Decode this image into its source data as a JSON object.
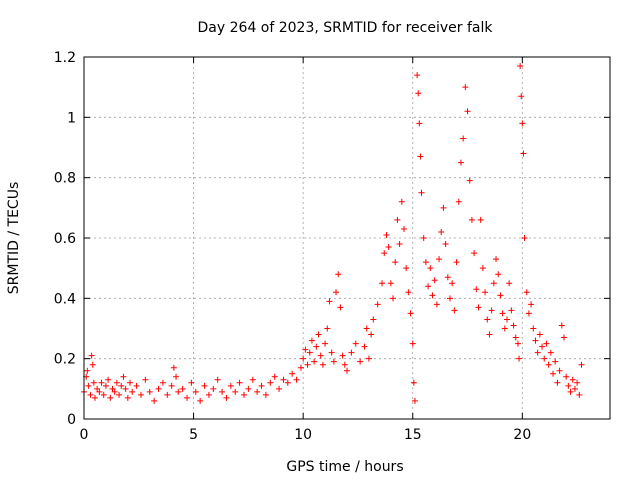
{
  "chart_data": {
    "type": "scatter",
    "title": "Day 264 of 2023, SRMTID for receiver falk",
    "xlabel": "GPS time / hours",
    "ylabel": "SRMTID / TECUs",
    "xlim": [
      0,
      24
    ],
    "ylim": [
      0,
      1.2
    ],
    "grid": true,
    "marker": "+",
    "x_ticks": [
      0,
      5,
      10,
      15,
      20
    ],
    "x_tick_labels": [
      "0",
      "5",
      "10",
      "15",
      "20"
    ],
    "y_ticks": [
      0,
      0.2,
      0.4,
      0.6,
      0.8,
      1.0,
      1.2
    ],
    "y_tick_labels": [
      "0",
      "0.2",
      "0.4",
      "0.6",
      "0.8",
      "1",
      "1.2"
    ],
    "series": [
      {
        "name": "SRMTID",
        "color": "#ff0000",
        "points": [
          [
            0.0,
            0.09
          ],
          [
            0.1,
            0.14
          ],
          [
            0.15,
            0.16
          ],
          [
            0.2,
            0.11
          ],
          [
            0.3,
            0.08
          ],
          [
            0.35,
            0.21
          ],
          [
            0.4,
            0.18
          ],
          [
            0.45,
            0.12
          ],
          [
            0.5,
            0.07
          ],
          [
            0.6,
            0.1
          ],
          [
            0.7,
            0.09
          ],
          [
            0.8,
            0.12
          ],
          [
            0.9,
            0.08
          ],
          [
            1.0,
            0.11
          ],
          [
            1.1,
            0.13
          ],
          [
            1.2,
            0.07
          ],
          [
            1.3,
            0.1
          ],
          [
            1.4,
            0.09
          ],
          [
            1.5,
            0.12
          ],
          [
            1.6,
            0.08
          ],
          [
            1.7,
            0.11
          ],
          [
            1.8,
            0.14
          ],
          [
            1.9,
            0.1
          ],
          [
            2.0,
            0.07
          ],
          [
            2.1,
            0.12
          ],
          [
            2.2,
            0.09
          ],
          [
            2.4,
            0.11
          ],
          [
            2.6,
            0.08
          ],
          [
            2.8,
            0.13
          ],
          [
            3.0,
            0.09
          ],
          [
            3.2,
            0.06
          ],
          [
            3.4,
            0.1
          ],
          [
            3.6,
            0.12
          ],
          [
            3.8,
            0.08
          ],
          [
            4.0,
            0.11
          ],
          [
            4.1,
            0.17
          ],
          [
            4.2,
            0.14
          ],
          [
            4.3,
            0.09
          ],
          [
            4.5,
            0.1
          ],
          [
            4.7,
            0.07
          ],
          [
            4.9,
            0.12
          ],
          [
            5.1,
            0.09
          ],
          [
            5.3,
            0.06
          ],
          [
            5.5,
            0.11
          ],
          [
            5.7,
            0.08
          ],
          [
            5.9,
            0.1
          ],
          [
            6.1,
            0.13
          ],
          [
            6.3,
            0.09
          ],
          [
            6.5,
            0.07
          ],
          [
            6.7,
            0.11
          ],
          [
            6.9,
            0.09
          ],
          [
            7.1,
            0.12
          ],
          [
            7.3,
            0.08
          ],
          [
            7.5,
            0.1
          ],
          [
            7.7,
            0.13
          ],
          [
            7.9,
            0.09
          ],
          [
            8.1,
            0.11
          ],
          [
            8.3,
            0.08
          ],
          [
            8.5,
            0.12
          ],
          [
            8.7,
            0.14
          ],
          [
            8.9,
            0.1
          ],
          [
            9.1,
            0.13
          ],
          [
            9.3,
            0.12
          ],
          [
            9.5,
            0.15
          ],
          [
            9.7,
            0.13
          ],
          [
            9.9,
            0.17
          ],
          [
            10.0,
            0.2
          ],
          [
            10.1,
            0.23
          ],
          [
            10.2,
            0.18
          ],
          [
            10.3,
            0.22
          ],
          [
            10.4,
            0.26
          ],
          [
            10.5,
            0.19
          ],
          [
            10.6,
            0.24
          ],
          [
            10.7,
            0.28
          ],
          [
            10.8,
            0.21
          ],
          [
            10.9,
            0.18
          ],
          [
            11.0,
            0.25
          ],
          [
            11.1,
            0.3
          ],
          [
            11.2,
            0.39
          ],
          [
            11.3,
            0.22
          ],
          [
            11.4,
            0.19
          ],
          [
            11.5,
            0.42
          ],
          [
            11.6,
            0.48
          ],
          [
            11.7,
            0.37
          ],
          [
            11.8,
            0.21
          ],
          [
            11.9,
            0.18
          ],
          [
            12.0,
            0.16
          ],
          [
            12.2,
            0.22
          ],
          [
            12.4,
            0.25
          ],
          [
            12.6,
            0.19
          ],
          [
            12.8,
            0.24
          ],
          [
            12.9,
            0.3
          ],
          [
            13.0,
            0.2
          ],
          [
            13.1,
            0.28
          ],
          [
            13.2,
            0.33
          ],
          [
            13.4,
            0.38
          ],
          [
            13.6,
            0.45
          ],
          [
            13.7,
            0.55
          ],
          [
            13.8,
            0.61
          ],
          [
            13.9,
            0.57
          ],
          [
            14.0,
            0.45
          ],
          [
            14.1,
            0.4
          ],
          [
            14.2,
            0.52
          ],
          [
            14.3,
            0.66
          ],
          [
            14.4,
            0.58
          ],
          [
            14.5,
            0.72
          ],
          [
            14.6,
            0.63
          ],
          [
            14.7,
            0.5
          ],
          [
            14.8,
            0.42
          ],
          [
            14.9,
            0.35
          ],
          [
            15.0,
            0.25
          ],
          [
            15.05,
            0.12
          ],
          [
            15.1,
            0.06
          ],
          [
            15.2,
            1.14
          ],
          [
            15.25,
            1.08
          ],
          [
            15.3,
            0.98
          ],
          [
            15.35,
            0.87
          ],
          [
            15.4,
            0.75
          ],
          [
            15.5,
            0.6
          ],
          [
            15.6,
            0.52
          ],
          [
            15.7,
            0.44
          ],
          [
            15.8,
            0.5
          ],
          [
            15.9,
            0.41
          ],
          [
            16.0,
            0.46
          ],
          [
            16.1,
            0.38
          ],
          [
            16.2,
            0.53
          ],
          [
            16.3,
            0.62
          ],
          [
            16.4,
            0.7
          ],
          [
            16.5,
            0.58
          ],
          [
            16.6,
            0.47
          ],
          [
            16.7,
            0.4
          ],
          [
            16.8,
            0.45
          ],
          [
            16.9,
            0.36
          ],
          [
            17.0,
            0.52
          ],
          [
            17.1,
            0.72
          ],
          [
            17.2,
            0.85
          ],
          [
            17.3,
            0.93
          ],
          [
            17.4,
            1.1
          ],
          [
            17.5,
            1.02
          ],
          [
            17.6,
            0.79
          ],
          [
            17.7,
            0.66
          ],
          [
            17.8,
            0.55
          ],
          [
            17.9,
            0.43
          ],
          [
            18.0,
            0.37
          ],
          [
            18.1,
            0.66
          ],
          [
            18.2,
            0.5
          ],
          [
            18.3,
            0.42
          ],
          [
            18.4,
            0.33
          ],
          [
            18.5,
            0.28
          ],
          [
            18.6,
            0.36
          ],
          [
            18.7,
            0.45
          ],
          [
            18.8,
            0.53
          ],
          [
            18.9,
            0.48
          ],
          [
            19.0,
            0.41
          ],
          [
            19.1,
            0.35
          ],
          [
            19.2,
            0.3
          ],
          [
            19.3,
            0.33
          ],
          [
            19.4,
            0.45
          ],
          [
            19.5,
            0.36
          ],
          [
            19.6,
            0.31
          ],
          [
            19.7,
            0.27
          ],
          [
            19.8,
            0.25
          ],
          [
            19.85,
            0.2
          ],
          [
            19.9,
            1.17
          ],
          [
            19.95,
            1.07
          ],
          [
            20.0,
            0.98
          ],
          [
            20.05,
            0.88
          ],
          [
            20.1,
            0.6
          ],
          [
            20.2,
            0.42
          ],
          [
            20.3,
            0.35
          ],
          [
            20.4,
            0.38
          ],
          [
            20.5,
            0.3
          ],
          [
            20.6,
            0.26
          ],
          [
            20.7,
            0.22
          ],
          [
            20.8,
            0.28
          ],
          [
            20.9,
            0.24
          ],
          [
            21.0,
            0.2
          ],
          [
            21.1,
            0.25
          ],
          [
            21.2,
            0.18
          ],
          [
            21.3,
            0.22
          ],
          [
            21.4,
            0.15
          ],
          [
            21.5,
            0.19
          ],
          [
            21.6,
            0.12
          ],
          [
            21.7,
            0.16
          ],
          [
            21.8,
            0.31
          ],
          [
            21.9,
            0.27
          ],
          [
            22.0,
            0.14
          ],
          [
            22.1,
            0.11
          ],
          [
            22.2,
            0.09
          ],
          [
            22.3,
            0.13
          ],
          [
            22.4,
            0.1
          ],
          [
            22.5,
            0.12
          ],
          [
            22.6,
            0.08
          ],
          [
            22.7,
            0.18
          ]
        ]
      }
    ]
  }
}
